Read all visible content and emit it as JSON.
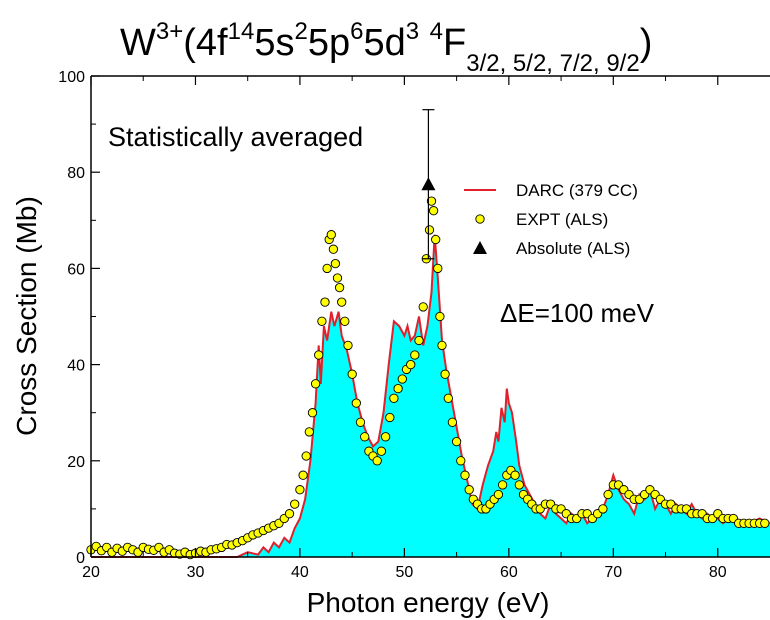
{
  "chart_data": {
    "type": "area",
    "title": {
      "base": "W",
      "charge": "3+",
      "config": [
        {
          "t": "(4f"
        },
        {
          "sup": "14"
        },
        {
          "t": "5s"
        },
        {
          "sup": "2"
        },
        {
          "t": "5p"
        },
        {
          "sup": "6"
        },
        {
          "t": "5d"
        },
        {
          "sup": "3"
        },
        {
          "t": " "
        },
        {
          "sup": "4"
        },
        {
          "t": "F"
        },
        {
          "sub": "3/2, 5/2, 7/2, 9/2"
        },
        {
          "t": ")"
        }
      ]
    },
    "xlabel": "Photon energy (eV)",
    "ylabel": "Cross Section (Mb)",
    "xlim": [
      20,
      85
    ],
    "ylim": [
      0,
      100
    ],
    "xticks": [
      20,
      30,
      40,
      50,
      60,
      70,
      80
    ],
    "yticks": [
      0,
      20,
      40,
      60,
      80,
      100
    ],
    "grid": false,
    "legend_position": "top-right",
    "annotations": {
      "statistical": "Statistically averaged",
      "resolution": "ΔE=100 meV"
    },
    "series": [
      {
        "name": "DARC (379 CC)",
        "style": "line-filled",
        "color": "#e0202a",
        "fill": "#00ffff",
        "points": [
          [
            20,
            0
          ],
          [
            34,
            0
          ],
          [
            35,
            1
          ],
          [
            36,
            0.5
          ],
          [
            36.5,
            2
          ],
          [
            37,
            1
          ],
          [
            37.5,
            3
          ],
          [
            38,
            2
          ],
          [
            38.5,
            4
          ],
          [
            39,
            3
          ],
          [
            39.5,
            6
          ],
          [
            40,
            8
          ],
          [
            40.5,
            12
          ],
          [
            41,
            20
          ],
          [
            41.5,
            32
          ],
          [
            41.8,
            44
          ],
          [
            42,
            36
          ],
          [
            42.3,
            48
          ],
          [
            42.6,
            45
          ],
          [
            43,
            51
          ],
          [
            43.3,
            48
          ],
          [
            43.7,
            51
          ],
          [
            44,
            46
          ],
          [
            44.5,
            43
          ],
          [
            45,
            38
          ],
          [
            45.5,
            32
          ],
          [
            46,
            28
          ],
          [
            46.5,
            25
          ],
          [
            47,
            23
          ],
          [
            47.5,
            24
          ],
          [
            48,
            30
          ],
          [
            48.5,
            40
          ],
          [
            49,
            49
          ],
          [
            49.5,
            48
          ],
          [
            50,
            46
          ],
          [
            50.3,
            48
          ],
          [
            50.6,
            45
          ],
          [
            51,
            46
          ],
          [
            51.4,
            50
          ],
          [
            51.8,
            44
          ],
          [
            52.2,
            48
          ],
          [
            52.6,
            55
          ],
          [
            52.9,
            67
          ],
          [
            53.2,
            58
          ],
          [
            53.6,
            45
          ],
          [
            54,
            39
          ],
          [
            54.5,
            33
          ],
          [
            55,
            27
          ],
          [
            55.5,
            21
          ],
          [
            56,
            16
          ],
          [
            56.5,
            11
          ],
          [
            57,
            10
          ],
          [
            57.5,
            15
          ],
          [
            58,
            19
          ],
          [
            58.5,
            22
          ],
          [
            58.8,
            26
          ],
          [
            59,
            24
          ],
          [
            59.3,
            31
          ],
          [
            59.6,
            28
          ],
          [
            59.8,
            35
          ],
          [
            60,
            32
          ],
          [
            60.3,
            30
          ],
          [
            60.7,
            24
          ],
          [
            61,
            19
          ],
          [
            61.5,
            15
          ],
          [
            62,
            13
          ],
          [
            62.5,
            11
          ],
          [
            63,
            9
          ],
          [
            63.5,
            8
          ],
          [
            64,
            11
          ],
          [
            64.5,
            9
          ],
          [
            65,
            8
          ],
          [
            65.5,
            7
          ],
          [
            66,
            9
          ],
          [
            66.5,
            8
          ],
          [
            67,
            9
          ],
          [
            67.5,
            7
          ],
          [
            68,
            8
          ],
          [
            68.5,
            9
          ],
          [
            69,
            10
          ],
          [
            69.5,
            13
          ],
          [
            70,
            17
          ],
          [
            70.5,
            14
          ],
          [
            71,
            12
          ],
          [
            71.5,
            11
          ],
          [
            72,
            9
          ],
          [
            72.5,
            13
          ],
          [
            73,
            12
          ],
          [
            73.5,
            14
          ],
          [
            74,
            10
          ],
          [
            74.5,
            12
          ],
          [
            75,
            11
          ],
          [
            75.5,
            9
          ],
          [
            76,
            11
          ],
          [
            76.5,
            10
          ],
          [
            77,
            9
          ],
          [
            77.5,
            11
          ],
          [
            78,
            9
          ],
          [
            78.5,
            8
          ],
          [
            79,
            9
          ],
          [
            79.5,
            8
          ],
          [
            80,
            8
          ],
          [
            80.5,
            7
          ],
          [
            81,
            8
          ],
          [
            82,
            7
          ],
          [
            83,
            7
          ],
          [
            84,
            8
          ],
          [
            85,
            7
          ]
        ]
      },
      {
        "name": "EXPT (ALS)",
        "style": "markers",
        "color": "#ffff00",
        "points": [
          [
            20,
            1.5
          ],
          [
            20.5,
            2.2
          ],
          [
            21,
            1.3
          ],
          [
            21.5,
            2
          ],
          [
            22,
            1
          ],
          [
            22.5,
            1.8
          ],
          [
            23,
            1.2
          ],
          [
            23.5,
            2
          ],
          [
            24,
            1.5
          ],
          [
            24.5,
            1
          ],
          [
            25,
            2
          ],
          [
            25.5,
            1.6
          ],
          [
            26,
            1.4
          ],
          [
            26.5,
            2
          ],
          [
            27,
            1
          ],
          [
            27.5,
            1.5
          ],
          [
            28,
            0.8
          ],
          [
            28.5,
            0.6
          ],
          [
            29,
            1
          ],
          [
            29.5,
            0.5
          ],
          [
            30,
            0.8
          ],
          [
            30.5,
            1.2
          ],
          [
            31,
            1
          ],
          [
            31.5,
            1.5
          ],
          [
            32,
            1.7
          ],
          [
            32.5,
            2
          ],
          [
            33,
            2.6
          ],
          [
            33.5,
            2.5
          ],
          [
            34,
            3
          ],
          [
            34.5,
            3.4
          ],
          [
            35,
            4
          ],
          [
            35.5,
            4.6
          ],
          [
            36,
            5
          ],
          [
            36.5,
            5.5
          ],
          [
            37,
            6
          ],
          [
            37.5,
            6.5
          ],
          [
            38,
            7
          ],
          [
            38.5,
            8
          ],
          [
            39,
            9
          ],
          [
            39.5,
            11
          ],
          [
            40,
            14
          ],
          [
            40.3,
            17
          ],
          [
            40.6,
            21
          ],
          [
            40.9,
            26
          ],
          [
            41.2,
            30
          ],
          [
            41.5,
            36
          ],
          [
            41.8,
            42
          ],
          [
            42.1,
            49
          ],
          [
            42.4,
            53
          ],
          [
            42.6,
            60
          ],
          [
            42.8,
            66
          ],
          [
            43,
            67
          ],
          [
            43.2,
            64
          ],
          [
            43.4,
            61
          ],
          [
            43.6,
            58
          ],
          [
            43.8,
            56
          ],
          [
            44,
            53
          ],
          [
            44.3,
            49
          ],
          [
            44.6,
            44
          ],
          [
            45,
            38
          ],
          [
            45.4,
            32
          ],
          [
            45.8,
            28
          ],
          [
            46.2,
            25
          ],
          [
            46.6,
            22
          ],
          [
            47,
            21
          ],
          [
            47.4,
            20
          ],
          [
            47.8,
            22
          ],
          [
            48.2,
            25
          ],
          [
            48.6,
            29
          ],
          [
            49,
            33
          ],
          [
            49.4,
            35
          ],
          [
            49.8,
            37
          ],
          [
            50.2,
            39
          ],
          [
            50.6,
            40
          ],
          [
            51,
            42
          ],
          [
            51.4,
            45
          ],
          [
            51.8,
            52
          ],
          [
            52.1,
            62
          ],
          [
            52.4,
            68
          ],
          [
            52.6,
            74
          ],
          [
            52.8,
            72
          ],
          [
            53,
            66
          ],
          [
            53.2,
            60
          ],
          [
            53.4,
            50
          ],
          [
            53.6,
            44
          ],
          [
            53.9,
            38
          ],
          [
            54.2,
            33
          ],
          [
            54.6,
            28
          ],
          [
            55,
            24
          ],
          [
            55.4,
            20
          ],
          [
            55.8,
            17
          ],
          [
            56.2,
            14
          ],
          [
            56.6,
            12
          ],
          [
            57,
            11
          ],
          [
            57.4,
            10
          ],
          [
            57.8,
            10
          ],
          [
            58.2,
            11
          ],
          [
            58.6,
            12
          ],
          [
            59,
            13
          ],
          [
            59.4,
            15
          ],
          [
            59.8,
            17
          ],
          [
            60.2,
            18
          ],
          [
            60.6,
            17
          ],
          [
            61,
            15
          ],
          [
            61.4,
            13
          ],
          [
            61.8,
            12
          ],
          [
            62.2,
            11
          ],
          [
            62.6,
            10
          ],
          [
            63,
            10
          ],
          [
            63.5,
            11
          ],
          [
            64,
            11
          ],
          [
            64.5,
            10
          ],
          [
            65,
            10
          ],
          [
            65.5,
            9
          ],
          [
            66,
            8
          ],
          [
            66.5,
            8
          ],
          [
            67,
            9
          ],
          [
            67.5,
            9
          ],
          [
            68,
            8
          ],
          [
            68.5,
            9
          ],
          [
            69,
            10
          ],
          [
            69.5,
            13
          ],
          [
            70,
            15
          ],
          [
            70.5,
            15
          ],
          [
            71,
            14
          ],
          [
            71.5,
            13
          ],
          [
            72,
            12
          ],
          [
            72.5,
            12
          ],
          [
            73,
            13
          ],
          [
            73.5,
            14
          ],
          [
            74,
            13
          ],
          [
            74.5,
            12
          ],
          [
            75,
            11
          ],
          [
            75.5,
            11
          ],
          [
            76,
            10
          ],
          [
            76.5,
            10
          ],
          [
            77,
            10
          ],
          [
            77.5,
            9
          ],
          [
            78,
            9
          ],
          [
            78.5,
            9
          ],
          [
            79,
            8
          ],
          [
            79.5,
            8
          ],
          [
            80,
            9
          ],
          [
            80.5,
            8
          ],
          [
            81,
            8
          ],
          [
            81.5,
            8
          ],
          [
            82,
            7
          ],
          [
            82.5,
            7
          ],
          [
            83,
            7
          ],
          [
            83.5,
            7
          ],
          [
            84,
            7
          ],
          [
            84.5,
            7
          ]
        ]
      },
      {
        "name": "Absolute (ALS)",
        "style": "triangle-errorbar",
        "color": "#000000",
        "x": 52.3,
        "y": 77.5,
        "err_low": 62,
        "err_high": 93
      }
    ]
  }
}
